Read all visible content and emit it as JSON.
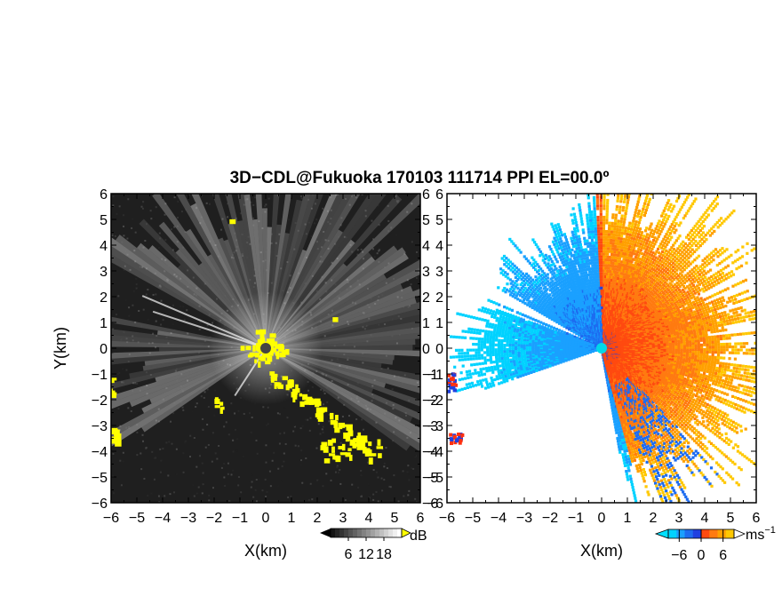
{
  "chart_data": [
    {
      "type": "heatmap",
      "title": "3D−CDL@Fukuoka 170103 111714 PPI EL=00.0º",
      "xlabel": "X(km)",
      "ylabel": "Y(km)",
      "xlim": [
        -6,
        6
      ],
      "ylim": [
        -6,
        6
      ],
      "x_ticks": [
        "−6",
        "−5",
        "−4",
        "−3",
        "−2",
        "−1",
        "0",
        "1",
        "2",
        "3",
        "4",
        "5",
        "6"
      ],
      "y_ticks": [
        "−6",
        "−5",
        "−4",
        "−3",
        "−2",
        "−1",
        "0",
        "1",
        "2",
        "3",
        "4",
        "5",
        "6"
      ],
      "colorbar": {
        "unit": "dB",
        "ticks": [
          6,
          12,
          18
        ],
        "tick_labels": [
          "6",
          "12",
          "18"
        ],
        "range": [
          0,
          24
        ]
      },
      "colors": {
        "background": "#1f1f1f",
        "high": "#f5f5f5",
        "saturated": "#ffff00"
      }
    },
    {
      "type": "heatmap",
      "xlabel": "X(km)",
      "xlim": [
        -6,
        6
      ],
      "ylim": [
        -6,
        6
      ],
      "x_ticks": [
        "−6",
        "−5",
        "−4",
        "−3",
        "−2",
        "−1",
        "0",
        "1",
        "2",
        "3",
        "4",
        "5",
        "6"
      ],
      "y_ticks": [
        "−6",
        "−5",
        "−4",
        "−3",
        "−2",
        "−1",
        "0",
        "1",
        "2",
        "3",
        "4",
        "5",
        "6"
      ],
      "colorbar": {
        "unit": "ms",
        "unit_sup": "−1",
        "ticks": [
          -6,
          0,
          6
        ],
        "tick_labels": [
          "−6",
          "0",
          "6"
        ],
        "range": [
          -9,
          9
        ]
      },
      "colors": {
        "approaching": "#1e78ff",
        "receding": "#ff5a14",
        "strong_receding": "#ffc800",
        "strong_approaching": "#00d0ff"
      }
    }
  ]
}
